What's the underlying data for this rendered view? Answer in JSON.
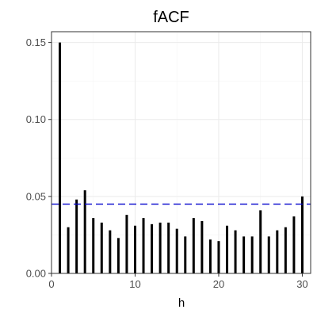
{
  "chart_data": {
    "type": "bar",
    "title": "fACF",
    "xlabel": "h",
    "ylabel": "",
    "x": [
      1,
      2,
      3,
      4,
      5,
      6,
      7,
      8,
      9,
      10,
      11,
      12,
      13,
      14,
      15,
      16,
      17,
      18,
      19,
      20,
      21,
      22,
      23,
      24,
      25,
      26,
      27,
      28,
      29,
      30
    ],
    "values": [
      0.15,
      0.03,
      0.048,
      0.054,
      0.036,
      0.033,
      0.028,
      0.023,
      0.038,
      0.031,
      0.036,
      0.032,
      0.033,
      0.033,
      0.029,
      0.024,
      0.036,
      0.034,
      0.022,
      0.021,
      0.031,
      0.028,
      0.024,
      0.024,
      0.041,
      0.024,
      0.028,
      0.03,
      0.037,
      0.05
    ],
    "threshold": 0.045,
    "xlim": [
      0,
      31
    ],
    "ylim": [
      0,
      0.157
    ],
    "xticks": [
      0,
      10,
      20,
      30
    ],
    "xtick_labels": [
      "0",
      "10",
      "20",
      "30"
    ],
    "yticks": [
      0.0,
      0.05,
      0.1,
      0.15
    ],
    "ytick_labels": [
      "0.00",
      "0.05",
      "0.10",
      "0.15"
    ],
    "grid": true,
    "colors": {
      "bars": "#000000",
      "threshold": "#0000cc",
      "grid_major": "#ebebeb",
      "grid_minor": "#f5f5f5",
      "panel_border": "#333333"
    }
  }
}
